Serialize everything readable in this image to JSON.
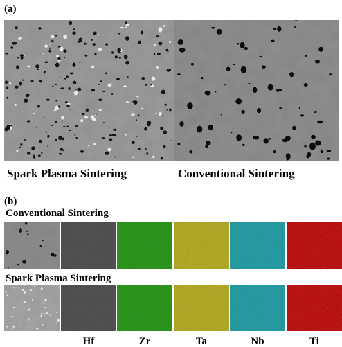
{
  "panel_a": {
    "label": "(a)",
    "captions": [
      "Spark Plasma Sintering",
      "Conventional Sintering"
    ]
  },
  "panel_b": {
    "label": "(b)",
    "rows": [
      {
        "title": "Conventional Sintering"
      },
      {
        "title": "Spark Plasma Sintering"
      }
    ],
    "elements": [
      "Hf",
      "Zr",
      "Ta",
      "Nb",
      "Ti"
    ]
  }
}
